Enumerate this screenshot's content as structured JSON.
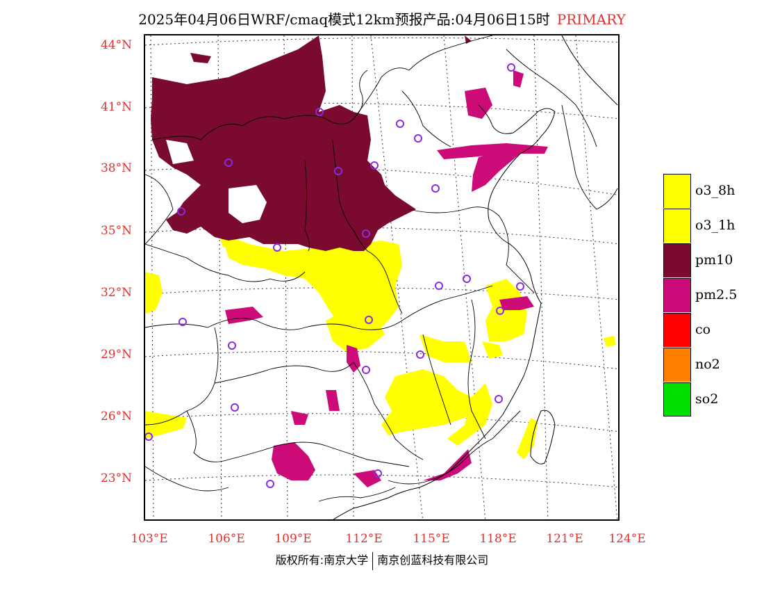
{
  "header": {
    "title": "2025年04月06日WRF/cmaq模式12km预报产品:04月06日15时",
    "tag": "PRIMARY"
  },
  "map": {
    "lat_labels": [
      "44°N",
      "41°N",
      "38°N",
      "35°N",
      "32°N",
      "29°N",
      "26°N",
      "23°N"
    ],
    "lon_labels": [
      "103°E",
      "106°E",
      "109°E",
      "112°E",
      "115°E",
      "118°E",
      "121°E",
      "124°E"
    ]
  },
  "legend": {
    "items": [
      {
        "label": "o3_8h",
        "color": "#ffff00"
      },
      {
        "label": "o3_1h",
        "color": "#ffff00"
      },
      {
        "label": "pm10",
        "color": "#7a0a2e"
      },
      {
        "label": "pm2.5",
        "color": "#cc0a78"
      },
      {
        "label": "co",
        "color": "#ff0000"
      },
      {
        "label": "no2",
        "color": "#ff8000"
      },
      {
        "label": "so2",
        "color": "#00e000"
      }
    ]
  },
  "footer": {
    "left": "版权所有:南京大学",
    "right": "南京创蓝科技有限公司"
  },
  "colors": {
    "pm10": "#7a0a2e",
    "pm25": "#cc0a78",
    "o3": "#ffff00",
    "station": "#8a2be2",
    "label": "#e03030"
  }
}
